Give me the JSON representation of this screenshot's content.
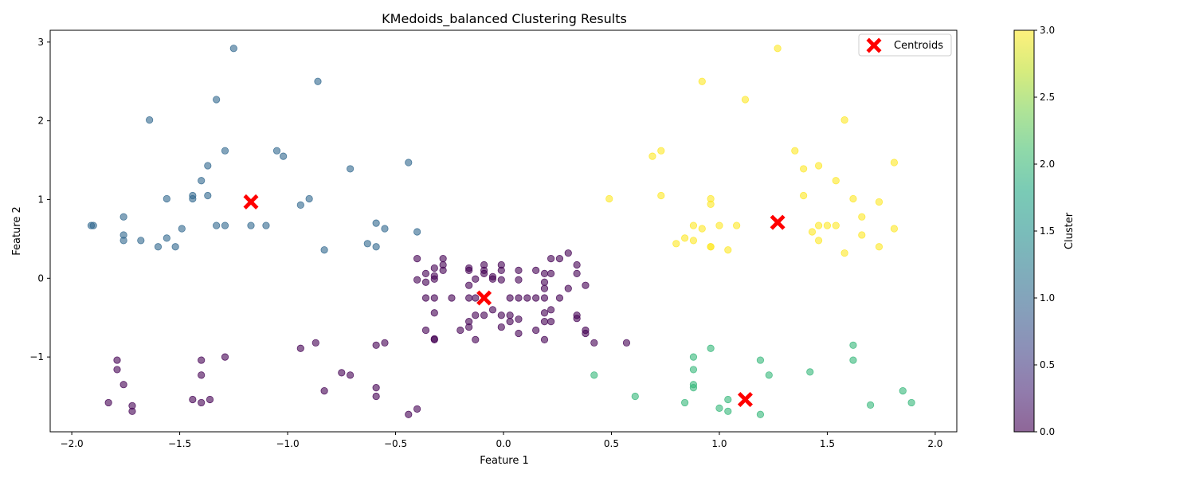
{
  "chart_data": {
    "type": "scatter",
    "title": "KMedoids_balanced Clustering Results",
    "xlabel": "Feature 1",
    "ylabel": "Feature 2",
    "xlim": [
      -2.1,
      2.1
    ],
    "ylim": [
      -1.95,
      3.15
    ],
    "xticks": [
      -2.0,
      -1.5,
      -1.0,
      -0.5,
      0.0,
      0.5,
      1.0,
      1.5,
      2.0
    ],
    "yticks": [
      -1,
      0,
      1,
      2,
      3
    ],
    "grid": false,
    "legend": {
      "placement": "top-right",
      "entries": [
        "Centroids"
      ]
    },
    "colorbar": {
      "label": "Cluster",
      "range": [
        0.0,
        3.0
      ],
      "ticks": [
        "0.0",
        "0.5",
        "1.0",
        "1.5",
        "2.0",
        "2.5",
        "3.0"
      ],
      "colormap": "viridis"
    },
    "colors": {
      "cluster_0": "#440154",
      "cluster_1": "#31688e",
      "cluster_2": "#35b779",
      "cluster_3": "#fde725",
      "centroid": "#ff0000"
    },
    "series": [
      {
        "cluster": 0,
        "points": [
          [
            -0.4,
            0.25
          ],
          [
            -0.28,
            0.25
          ],
          [
            -0.28,
            0.17
          ],
          [
            -0.32,
            0.13
          ],
          [
            -0.28,
            0.1
          ],
          [
            -0.16,
            0.13
          ],
          [
            -0.16,
            0.1
          ],
          [
            -0.09,
            0.17
          ],
          [
            -0.09,
            0.1
          ],
          [
            -0.09,
            0.06
          ],
          [
            -0.01,
            0.17
          ],
          [
            -0.01,
            0.1
          ],
          [
            0.07,
            0.1
          ],
          [
            0.15,
            0.1
          ],
          [
            0.22,
            0.25
          ],
          [
            0.26,
            0.25
          ],
          [
            0.3,
            0.32
          ],
          [
            0.34,
            0.17
          ],
          [
            0.22,
            0.06
          ],
          [
            0.34,
            0.06
          ],
          [
            -0.36,
            0.06
          ],
          [
            -0.32,
            0.03
          ],
          [
            -0.32,
            -0.01
          ],
          [
            -0.4,
            -0.02
          ],
          [
            -0.36,
            -0.05
          ],
          [
            -0.05,
            0.02
          ],
          [
            -0.05,
            -0.01
          ],
          [
            -0.13,
            -0.01
          ],
          [
            -0.01,
            -0.02
          ],
          [
            0.07,
            -0.02
          ],
          [
            0.19,
            0.06
          ],
          [
            0.19,
            -0.05
          ],
          [
            0.19,
            -0.13
          ],
          [
            0.3,
            -0.13
          ],
          [
            0.38,
            -0.09
          ],
          [
            -0.16,
            -0.09
          ],
          [
            -0.36,
            -0.25
          ],
          [
            -0.32,
            -0.25
          ],
          [
            -0.24,
            -0.25
          ],
          [
            -0.16,
            -0.25
          ],
          [
            -0.13,
            -0.25
          ],
          [
            0.03,
            -0.25
          ],
          [
            0.07,
            -0.25
          ],
          [
            0.11,
            -0.25
          ],
          [
            0.15,
            -0.25
          ],
          [
            0.19,
            -0.25
          ],
          [
            0.26,
            -0.25
          ],
          [
            -0.05,
            -0.4
          ],
          [
            -0.32,
            -0.44
          ],
          [
            -0.13,
            -0.47
          ],
          [
            -0.09,
            -0.47
          ],
          [
            -0.01,
            -0.47
          ],
          [
            0.03,
            -0.47
          ],
          [
            0.07,
            -0.52
          ],
          [
            0.03,
            -0.55
          ],
          [
            -0.16,
            -0.55
          ],
          [
            0.19,
            -0.44
          ],
          [
            0.22,
            -0.4
          ],
          [
            0.34,
            -0.47
          ],
          [
            0.34,
            -0.51
          ],
          [
            0.22,
            -0.55
          ],
          [
            0.19,
            -0.55
          ],
          [
            -0.01,
            -0.62
          ],
          [
            -0.16,
            -0.62
          ],
          [
            -0.2,
            -0.66
          ],
          [
            -0.36,
            -0.66
          ],
          [
            0.07,
            -0.7
          ],
          [
            0.15,
            -0.66
          ],
          [
            0.38,
            -0.66
          ],
          [
            0.38,
            -0.7
          ],
          [
            -0.13,
            -0.78
          ],
          [
            -0.32,
            -0.78
          ],
          [
            -0.32,
            -0.77
          ],
          [
            0.19,
            -0.78
          ],
          [
            0.42,
            -0.82
          ],
          [
            0.57,
            -0.82
          ],
          [
            -0.55,
            -0.82
          ],
          [
            -0.59,
            -0.85
          ],
          [
            -0.87,
            -0.82
          ],
          [
            -0.94,
            -0.89
          ],
          [
            -1.29,
            -1.0
          ],
          [
            -1.4,
            -1.04
          ],
          [
            -1.4,
            -1.23
          ],
          [
            -1.79,
            -1.04
          ],
          [
            -1.79,
            -1.16
          ],
          [
            -1.76,
            -1.35
          ],
          [
            -0.75,
            -1.2
          ],
          [
            -0.71,
            -1.23
          ],
          [
            -0.59,
            -1.39
          ],
          [
            -0.83,
            -1.43
          ],
          [
            -0.59,
            -1.5
          ],
          [
            -1.44,
            -1.54
          ],
          [
            -1.36,
            -1.54
          ],
          [
            -1.4,
            -1.58
          ],
          [
            -1.83,
            -1.58
          ],
          [
            -1.72,
            -1.62
          ],
          [
            -1.72,
            -1.69
          ],
          [
            -0.4,
            -1.66
          ],
          [
            -0.44,
            -1.73
          ]
        ]
      },
      {
        "cluster": 1,
        "points": [
          [
            -1.25,
            2.92
          ],
          [
            -0.86,
            2.5
          ],
          [
            -1.33,
            2.27
          ],
          [
            -1.64,
            2.01
          ],
          [
            -1.29,
            1.62
          ],
          [
            -1.05,
            1.62
          ],
          [
            -1.02,
            1.55
          ],
          [
            -0.44,
            1.47
          ],
          [
            -1.37,
            1.43
          ],
          [
            -0.71,
            1.39
          ],
          [
            -1.4,
            1.24
          ],
          [
            -1.44,
            1.05
          ],
          [
            -1.37,
            1.05
          ],
          [
            -1.56,
            1.01
          ],
          [
            -1.44,
            1.01
          ],
          [
            -0.9,
            1.01
          ],
          [
            -0.94,
            0.93
          ],
          [
            -1.91,
            0.67
          ],
          [
            -1.9,
            0.67
          ],
          [
            -1.76,
            0.78
          ],
          [
            -1.49,
            0.63
          ],
          [
            -1.33,
            0.67
          ],
          [
            -1.29,
            0.67
          ],
          [
            -1.17,
            0.67
          ],
          [
            -1.1,
            0.67
          ],
          [
            -0.59,
            0.7
          ],
          [
            -0.55,
            0.63
          ],
          [
            -0.4,
            0.59
          ],
          [
            -1.76,
            0.55
          ],
          [
            -1.76,
            0.48
          ],
          [
            -1.68,
            0.48
          ],
          [
            -1.56,
            0.51
          ],
          [
            -1.6,
            0.4
          ],
          [
            -1.52,
            0.4
          ],
          [
            -0.63,
            0.44
          ],
          [
            -0.59,
            0.4
          ],
          [
            -0.83,
            0.36
          ]
        ]
      },
      {
        "cluster": 2,
        "points": [
          [
            0.96,
            -0.89
          ],
          [
            0.88,
            -1.0
          ],
          [
            1.62,
            -0.85
          ],
          [
            1.19,
            -1.04
          ],
          [
            1.62,
            -1.04
          ],
          [
            0.88,
            -1.16
          ],
          [
            1.42,
            -1.19
          ],
          [
            1.23,
            -1.23
          ],
          [
            0.42,
            -1.23
          ],
          [
            0.88,
            -1.35
          ],
          [
            0.88,
            -1.39
          ],
          [
            0.61,
            -1.5
          ],
          [
            1.04,
            -1.54
          ],
          [
            0.84,
            -1.58
          ],
          [
            1.0,
            -1.65
          ],
          [
            1.04,
            -1.69
          ],
          [
            1.19,
            -1.73
          ],
          [
            1.85,
            -1.43
          ],
          [
            1.89,
            -1.58
          ],
          [
            1.7,
            -1.61
          ]
        ]
      },
      {
        "cluster": 3,
        "points": [
          [
            1.27,
            2.92
          ],
          [
            0.92,
            2.5
          ],
          [
            1.12,
            2.27
          ],
          [
            1.58,
            2.01
          ],
          [
            1.35,
            1.62
          ],
          [
            0.73,
            1.62
          ],
          [
            0.69,
            1.55
          ],
          [
            1.81,
            1.47
          ],
          [
            1.46,
            1.43
          ],
          [
            1.39,
            1.39
          ],
          [
            1.54,
            1.24
          ],
          [
            0.73,
            1.05
          ],
          [
            1.39,
            1.05
          ],
          [
            0.49,
            1.01
          ],
          [
            0.96,
            1.01
          ],
          [
            1.62,
            1.01
          ],
          [
            1.74,
            0.97
          ],
          [
            0.96,
            0.94
          ],
          [
            1.66,
            0.78
          ],
          [
            0.88,
            0.67
          ],
          [
            1.0,
            0.67
          ],
          [
            1.08,
            0.67
          ],
          [
            1.46,
            0.67
          ],
          [
            1.5,
            0.67
          ],
          [
            1.54,
            0.67
          ],
          [
            0.92,
            0.63
          ],
          [
            1.81,
            0.63
          ],
          [
            1.43,
            0.59
          ],
          [
            1.66,
            0.55
          ],
          [
            0.84,
            0.51
          ],
          [
            0.88,
            0.48
          ],
          [
            1.46,
            0.48
          ],
          [
            0.8,
            0.44
          ],
          [
            0.96,
            0.4
          ],
          [
            0.96,
            0.4
          ],
          [
            1.74,
            0.4
          ],
          [
            1.04,
            0.36
          ],
          [
            1.58,
            0.32
          ]
        ]
      }
    ],
    "centroids": [
      [
        -1.17,
        0.97
      ],
      [
        -0.09,
        -0.25
      ],
      [
        1.12,
        -1.54
      ],
      [
        1.27,
        0.71
      ]
    ]
  }
}
